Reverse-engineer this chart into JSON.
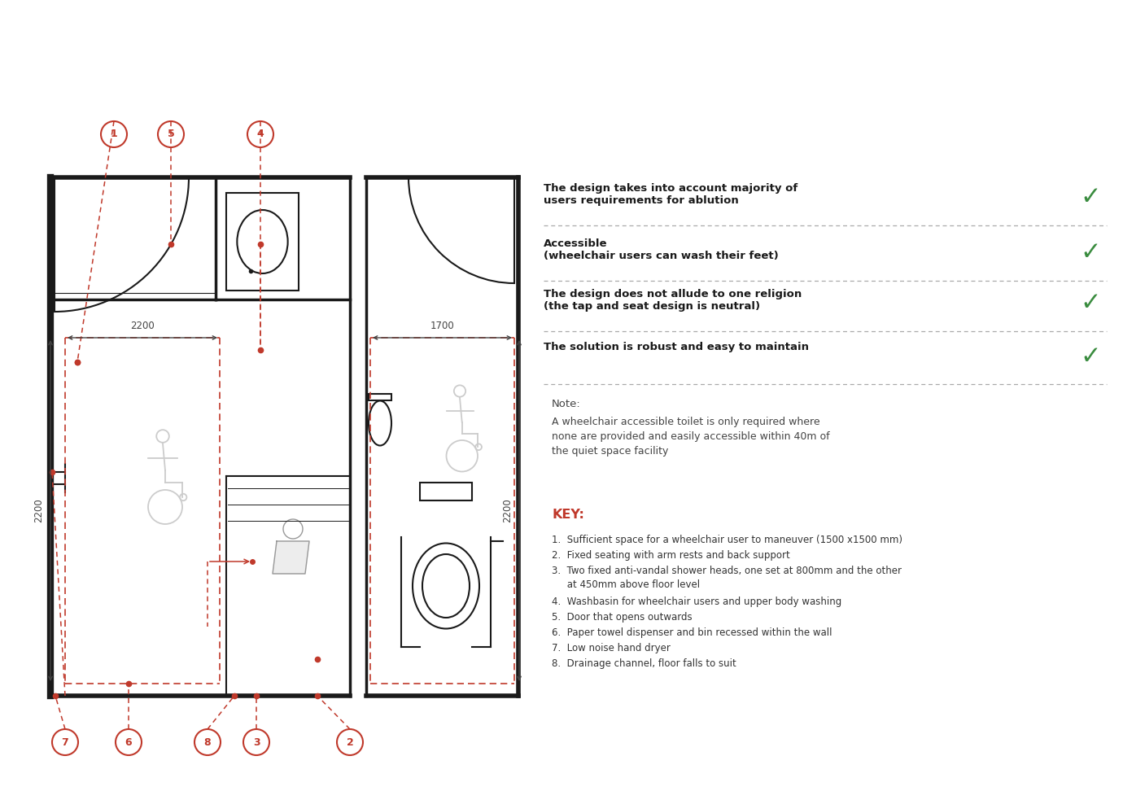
{
  "bg_color": "#ffffff",
  "wall_color": "#1a1a1a",
  "dashed_red": "#c0392b",
  "dim_color": "#444444",
  "green_check": "#3a8c3f",
  "key_red": "#c0392b",
  "checks": [
    "The design takes into account majority of\nusers requirements for ablution",
    "Accessible\n(wheelchair users can wash their feet)",
    "The design does not allude to one religion\n(the tap and seat design is neutral)",
    "The solution is robust and easy to maintain"
  ],
  "note_title": "Note:",
  "note_body": "A wheelchair accessible toilet is only required where\nnone are provided and easily accessible within 40m of\nthe quiet space facility",
  "key_title": "KEY:",
  "key_items": [
    "1.  Sufficient space for a wheelchair user to maneuver (1500 x1500 mm)",
    "2.  Fixed seating with arm rests and back support",
    "3.  Two fixed anti-vandal shower heads, one set at 800mm and the other\n     at 450mm above floor level",
    "4.  Washbasin for wheelchair users and upper body washing",
    "5.  Door that opens outwards",
    "6.  Paper towel dispenser and bin recessed within the wall",
    "7.  Low noise hand dryer",
    "8.  Drainage channel, floor falls to suit"
  ],
  "dim_2200": "2200",
  "dim_1700": "1700"
}
